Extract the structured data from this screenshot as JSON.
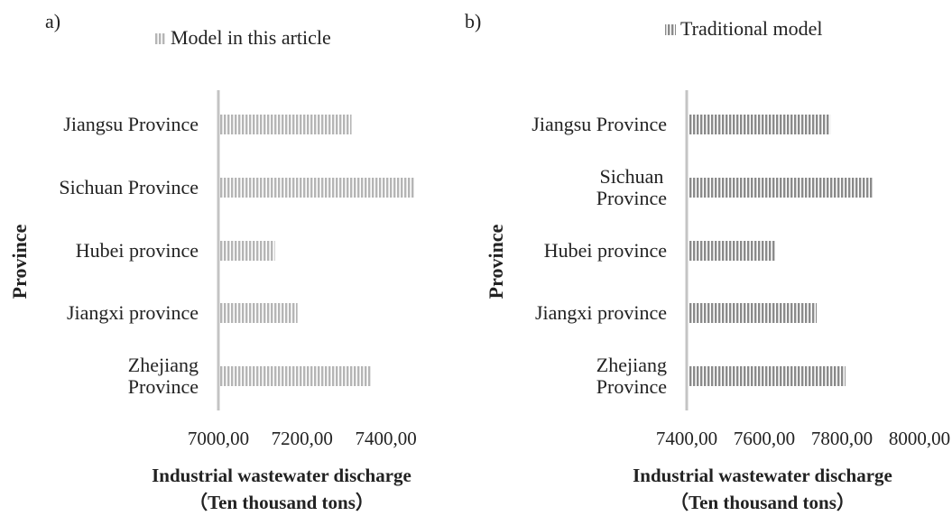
{
  "chart_data": [
    {
      "type": "barh",
      "label": "a)",
      "xlabel": "Industrial wastewater discharge\n（Ten thousand tons）",
      "ylabel": "Province",
      "categories": [
        "Jiangsu Province",
        "Sichuan Province",
        "Hubei province",
        "Jiangxi province",
        "Zhejiang\nProvince"
      ],
      "series": [
        {
          "name": "Model in this article",
          "color": "#b5b5b5",
          "values": [
            7318,
            7467,
            7135,
            7189,
            7363
          ]
        }
      ],
      "xlim": [
        7000,
        7500
      ],
      "xticks": [
        {
          "value": 7000,
          "label": "7000,00"
        },
        {
          "value": 7200,
          "label": "7200,00"
        },
        {
          "value": 7400,
          "label": "7400,00"
        }
      ],
      "legend": "top"
    },
    {
      "type": "barh",
      "label": "b)",
      "xlabel": "Industrial wastewater discharge\n（Ten thousand tons）",
      "ylabel": "Province",
      "categories": [
        "Jiangsu Province",
        "Sichuan\nProvince",
        "Hubei province",
        "Jiangxi province",
        "Zhejiang\nProvince"
      ],
      "series": [
        {
          "name": "Traditional model",
          "color": "#8a8a8a",
          "values": [
            7770,
            7881,
            7630,
            7735,
            7809
          ]
        }
      ],
      "xlim": [
        7400,
        8000
      ],
      "xticks": [
        {
          "value": 7400,
          "label": "7400,00"
        },
        {
          "value": 7600,
          "label": "7600,00"
        },
        {
          "value": 7800,
          "label": "7800,00"
        },
        {
          "value": 8000,
          "label": "8000,00"
        }
      ],
      "legend": "top"
    }
  ]
}
